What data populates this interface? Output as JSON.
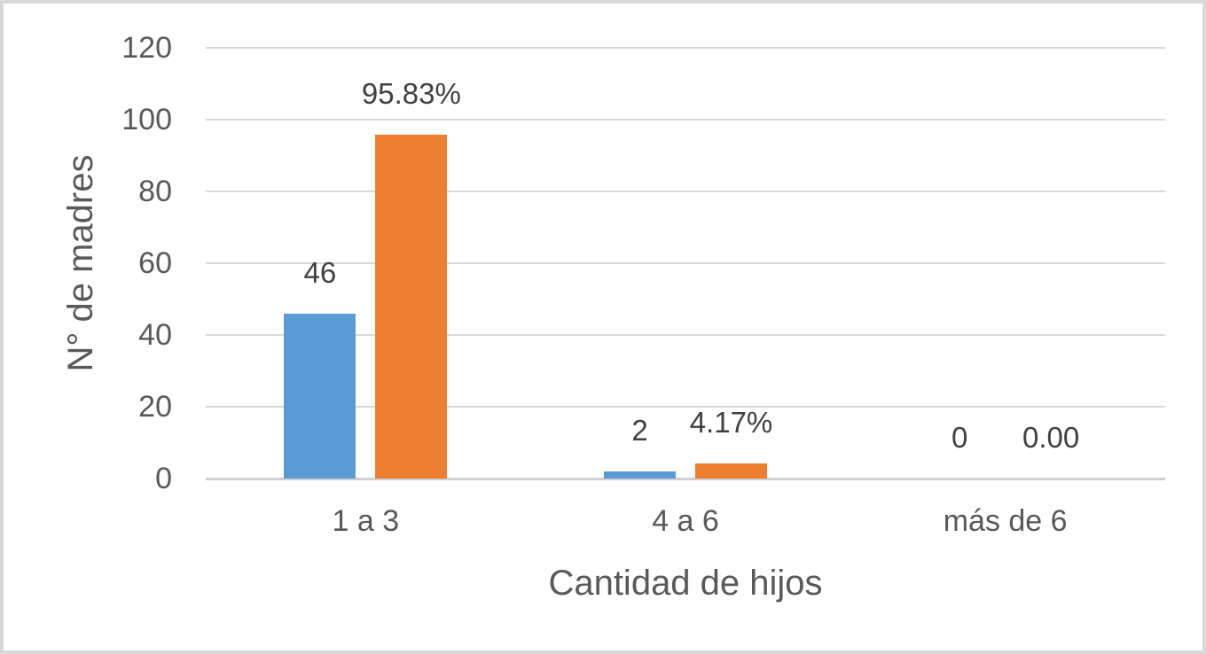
{
  "colors": {
    "bar_blue": "#5B9BD5",
    "bar_orange": "#ED7D31",
    "gridline": "#D9D9D9",
    "axis_text": "#595959",
    "label_text": "#404040",
    "border": "#D9D9D9",
    "background": "#FFFFFF"
  },
  "chart_data": {
    "type": "bar",
    "categories": [
      "1 a 3",
      "4 a 6",
      "más de 6"
    ],
    "series": [
      {
        "color_key": "bar_blue",
        "values": [
          46,
          2,
          0
        ],
        "labels": [
          "46",
          "2",
          "0"
        ]
      },
      {
        "color_key": "bar_orange",
        "values": [
          95.83,
          4.17,
          0
        ],
        "labels": [
          "95.83%",
          "4.17%",
          "0.00"
        ]
      }
    ],
    "xlabel": "Cantidad de hijos",
    "ylabel": "N° de madres",
    "ylim": [
      0,
      120
    ],
    "ytick_step": 20,
    "yticks": [
      "0",
      "20",
      "40",
      "60",
      "80",
      "100",
      "120"
    ],
    "grid": true,
    "legend": false,
    "title": ""
  }
}
